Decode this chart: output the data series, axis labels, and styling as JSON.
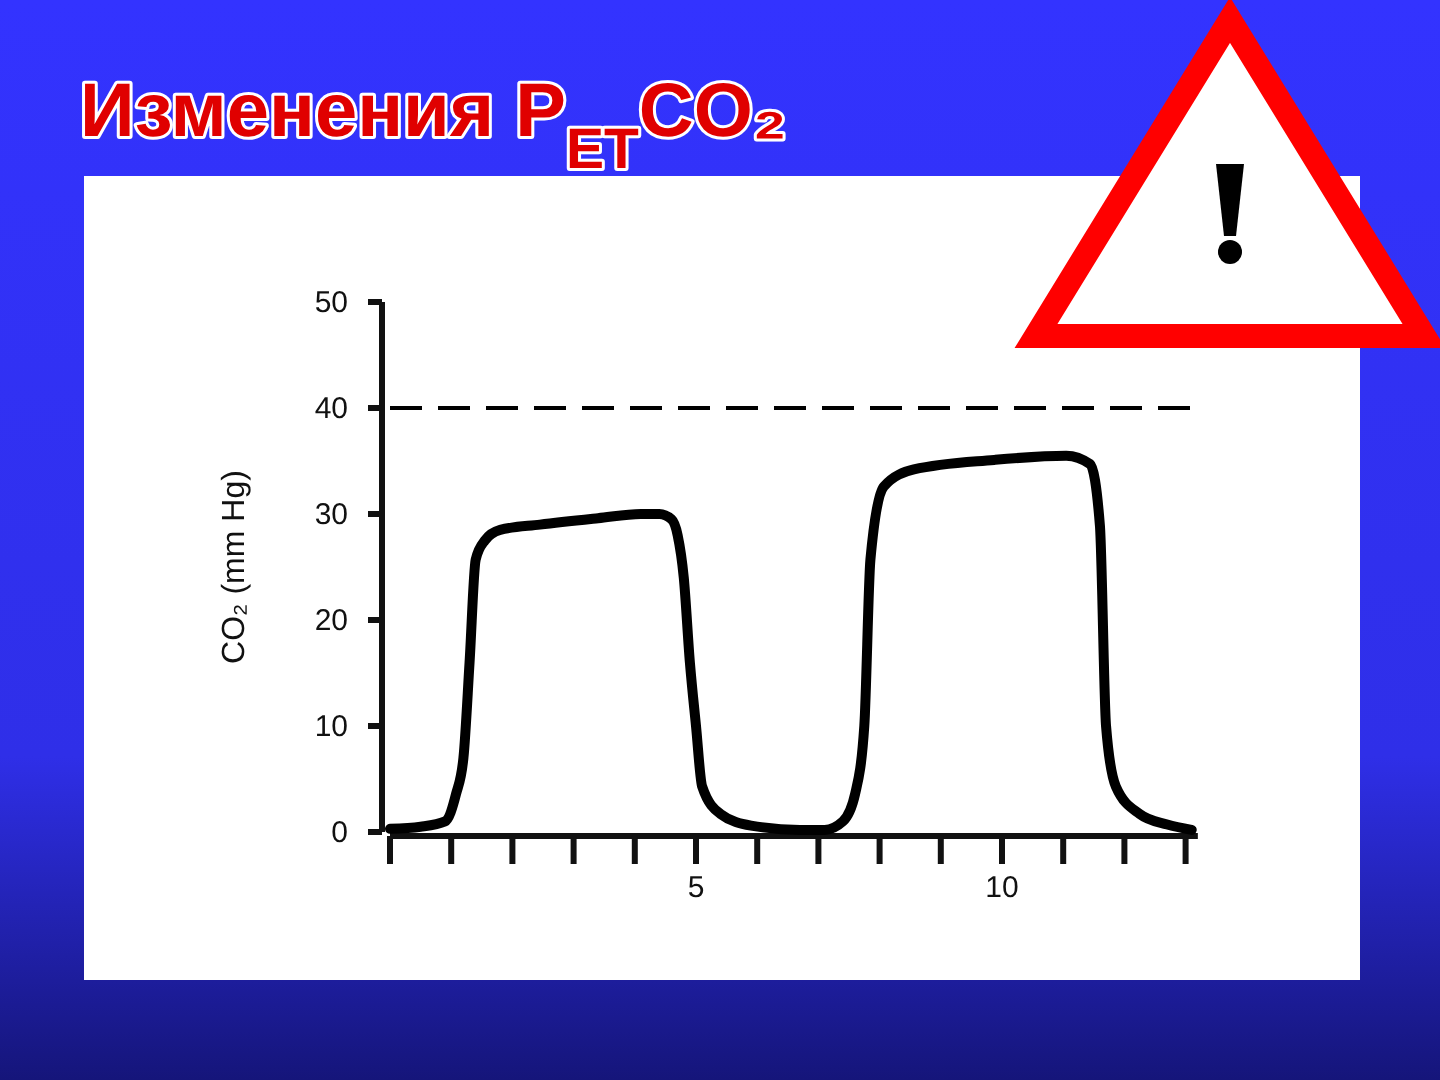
{
  "chart_data": {
    "type": "line",
    "title": "Изменения P$_{ET}$CO₂",
    "ylabel": "CO₂ (mm Hg)",
    "series": [
      {
        "color": "#000000",
        "x": [
          0,
          0.5,
          0.9,
          1.08,
          1.2,
          1.3,
          1.4,
          1.55,
          1.8,
          2.45,
          3.4,
          4.1,
          4.4,
          4.6,
          4.7,
          4.8,
          4.9,
          5.0,
          5.1,
          5.4,
          5.9,
          6.7,
          7.1,
          7.4,
          7.6,
          7.75,
          7.85,
          8.07,
          8.56,
          9.87,
          11.05,
          11.44,
          11.6,
          11.7,
          11.86,
          12.25,
          12.7,
          13.1
        ],
        "values": [
          0.3,
          0.5,
          1,
          3.6,
          7,
          16,
          25.7,
          27.5,
          28.5,
          29,
          29.6,
          30,
          30,
          29.5,
          28,
          24,
          16,
          10,
          4.3,
          1.7,
          0.6,
          0.2,
          0.2,
          1,
          3.6,
          10,
          25.7,
          32.6,
          34.2,
          35.1,
          35.5,
          34.7,
          28.9,
          10,
          4.3,
          1.7,
          0.7,
          0.2
        ]
      }
    ],
    "xlim": [
      0,
      13.2
    ],
    "xticks": [
      {
        "value": 0,
        "label": null
      },
      {
        "value": 1,
        "label": null
      },
      {
        "value": 2,
        "label": null
      },
      {
        "value": 3,
        "label": null
      },
      {
        "value": 4,
        "label": null
      },
      5,
      {
        "value": 6,
        "label": null
      },
      {
        "value": 7,
        "label": null
      },
      {
        "value": 8,
        "label": null
      },
      {
        "value": 9,
        "label": null
      },
      10,
      {
        "value": 11,
        "label": null
      },
      {
        "value": 12,
        "label": null
      },
      {
        "value": 13,
        "label": null
      }
    ],
    "ylim": [
      0,
      50
    ],
    "yticks": [
      0,
      10,
      20,
      30,
      40,
      50
    ],
    "ref_lines": [
      {
        "axis": "y",
        "value": 40,
        "color": "#000000",
        "line_style": "dashed"
      }
    ],
    "grid": false,
    "marker": "none",
    "line_style": "solid"
  }
}
